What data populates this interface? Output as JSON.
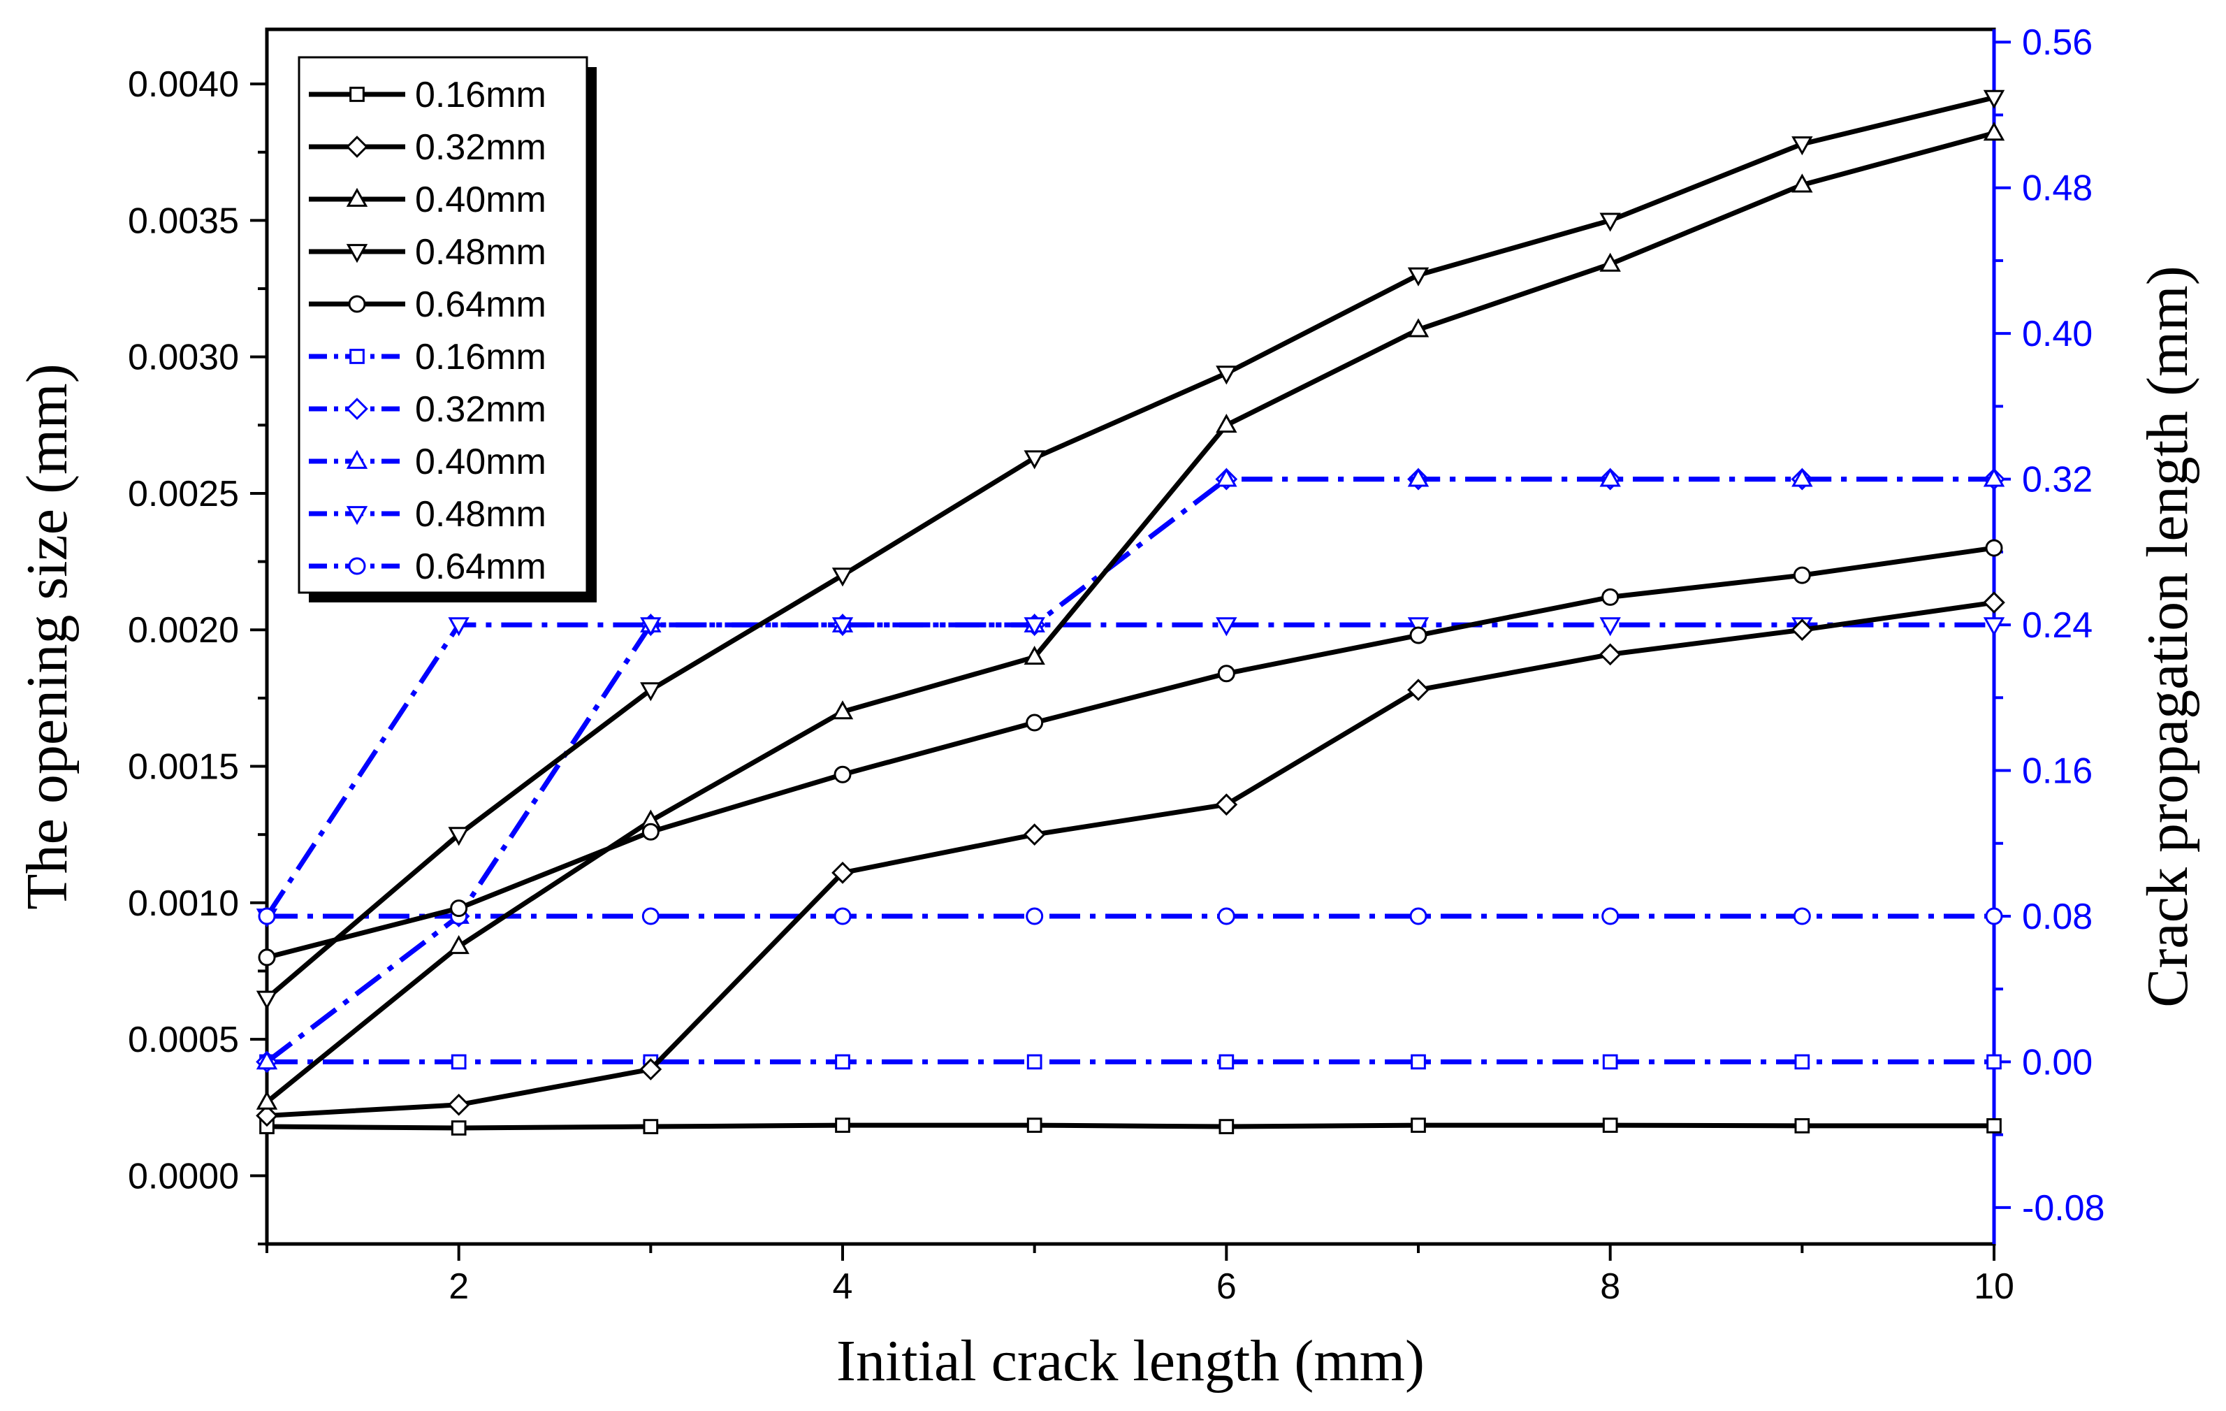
{
  "chart_data": {
    "type": "line",
    "xlabel": "Initial crack length (mm)",
    "ylabel_left": "The opening size (mm)",
    "ylabel_right": "Crack propagation length (mm)",
    "xlim": [
      1,
      10
    ],
    "xticks": [
      2,
      4,
      6,
      8,
      10
    ],
    "ylim_left": [
      -0.00025,
      0.0042
    ],
    "yticks_left": [
      "0.0000",
      "0.0005",
      "0.0010",
      "0.0015",
      "0.0020",
      "0.0025",
      "0.0030",
      "0.0035",
      "0.0040"
    ],
    "ylim_right": [
      -0.1,
      0.567
    ],
    "yticks_right": [
      "-0.08",
      "0.00",
      "0.08",
      "0.16",
      "0.24",
      "0.32",
      "0.40",
      "0.48",
      "0.56"
    ],
    "legend_position": "top-left",
    "colors": {
      "left_series": "#000000",
      "right_series": "#0000ff"
    },
    "x": [
      1,
      2,
      3,
      4,
      5,
      6,
      7,
      8,
      9,
      10
    ],
    "series_left": [
      {
        "name": "0.16mm",
        "marker": "square",
        "values": [
          0.00018,
          0.000175,
          0.00018,
          0.000185,
          0.000185,
          0.00018,
          0.000185,
          0.000185,
          0.000183,
          0.000183
        ]
      },
      {
        "name": "0.32mm",
        "marker": "diamond",
        "values": [
          0.00022,
          0.00026,
          0.00039,
          0.00111,
          0.00125,
          0.00136,
          0.00178,
          0.00191,
          0.002,
          0.0021
        ]
      },
      {
        "name": "0.40mm",
        "marker": "triangle-up",
        "values": [
          0.00027,
          0.00084,
          0.0013,
          0.0017,
          0.0019,
          0.00275,
          0.0031,
          0.00334,
          0.00363,
          0.00382
        ]
      },
      {
        "name": "0.48mm",
        "marker": "triangle-down",
        "values": [
          0.00065,
          0.00125,
          0.00178,
          0.0022,
          0.00263,
          0.00294,
          0.0033,
          0.0035,
          0.00378,
          0.00395
        ]
      },
      {
        "name": "0.64mm",
        "marker": "circle",
        "values": [
          0.0008,
          0.00098,
          0.00126,
          0.00147,
          0.00166,
          0.00184,
          0.00198,
          0.00212,
          0.0022,
          0.0023
        ]
      }
    ],
    "series_right": [
      {
        "name": "0.16mm",
        "marker": "square",
        "values": [
          0.0,
          0.0,
          0.0,
          0.0,
          0.0,
          0.0,
          0.0,
          0.0,
          0.0,
          0.0
        ]
      },
      {
        "name": "0.32mm",
        "marker": "diamond",
        "values": [
          0.0,
          0.08,
          0.24,
          0.24,
          0.24,
          0.32,
          0.32,
          0.32,
          0.32,
          0.32
        ]
      },
      {
        "name": "0.40mm",
        "marker": "triangle-up",
        "values": [
          0.0,
          0.08,
          0.24,
          0.24,
          0.24,
          0.32,
          0.32,
          0.32,
          0.32,
          0.32
        ]
      },
      {
        "name": "0.48mm",
        "marker": "triangle-down",
        "values": [
          0.08,
          0.24,
          0.24,
          0.24,
          0.24,
          0.24,
          0.24,
          0.24,
          0.24,
          0.24
        ]
      },
      {
        "name": "0.64mm",
        "marker": "circle",
        "values": [
          0.08,
          0.08,
          0.08,
          0.08,
          0.08,
          0.08,
          0.08,
          0.08,
          0.08,
          0.08
        ]
      }
    ]
  }
}
